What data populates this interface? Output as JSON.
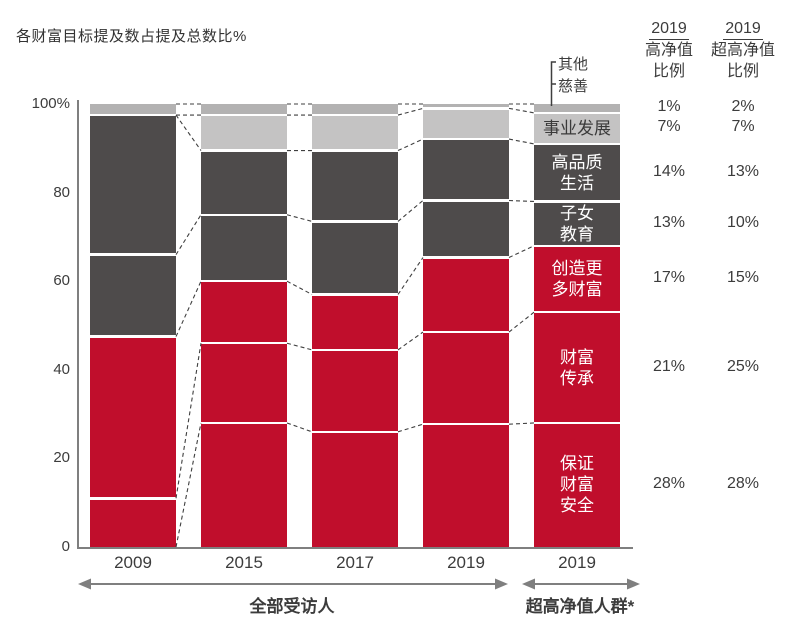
{
  "title": "各财富目标提及数占提及总数比%",
  "callout": {
    "other": "其他",
    "charity": "慈善"
  },
  "right_table": {
    "col1": {
      "year": "2019",
      "line1": "高净值",
      "line2": "比例"
    },
    "col2": {
      "year": "2019",
      "line1": "超高净值",
      "line2": "比例"
    }
  },
  "groups": [
    {
      "label": "全部受访人"
    },
    {
      "label": "超高净值人群*"
    }
  ],
  "colors": {
    "axis": "#7f7f7f",
    "text": "#3c3c3c",
    "red": "#c00e2c",
    "dark_gray": "#4e4b4b",
    "light_gray": "#c4c3c3",
    "sliver_gray": "#b3b2b2"
  },
  "chart_data": {
    "type": "bar",
    "subtype": "stacked-100-percent",
    "title": "各财富目标提及数占提及总数比%",
    "x": [
      "2009",
      "2015",
      "2017",
      "2019",
      "2019"
    ],
    "x_groups": [
      {
        "label": "全部受访人",
        "bars": [
          0,
          1,
          2,
          3
        ]
      },
      {
        "label": "超高净值人群*",
        "bars": [
          4
        ]
      }
    ],
    "y_ticks": [
      "100%",
      "80",
      "60",
      "40",
      "20",
      "0"
    ],
    "y_tick_pcts": [
      100,
      80,
      60,
      40,
      20,
      0
    ],
    "ylim": [
      0,
      100
    ],
    "legend_position": "in-bar-labels",
    "categories": [
      {
        "key": "ensure-wealth-safety",
        "name": "保证财富安全",
        "color": "#c00e2c",
        "label_color": "#ffffff",
        "label_lines": [
          "保证",
          "财富",
          "安全"
        ],
        "values": [
          0,
          28,
          26,
          28,
          28
        ],
        "hnw_2019": "28%",
        "uhnw_2019": "28%"
      },
      {
        "key": "wealth-inheritance",
        "name": "财富传承",
        "color": "#c00e2c",
        "label_color": "#ffffff",
        "label_lines": [
          "财富",
          "传承"
        ],
        "values": [
          11,
          18,
          18.5,
          21,
          25
        ],
        "hnw_2019": "21%",
        "uhnw_2019": "25%"
      },
      {
        "key": "create-more-wealth",
        "name": "创造更多财富",
        "color": "#c00e2c",
        "label_color": "#ffffff",
        "label_lines": [
          "创造更",
          "多财富"
        ],
        "values": [
          36.5,
          14,
          12.5,
          17,
          15
        ],
        "hnw_2019": "17%",
        "uhnw_2019": "15%"
      },
      {
        "key": "children-education",
        "name": "子女教育",
        "color": "#4e4b4b",
        "label_color": "#ffffff",
        "label_lines": [
          "子女",
          "教育"
        ],
        "values": [
          18.5,
          15,
          16.5,
          13,
          10
        ],
        "hnw_2019": "13%",
        "uhnw_2019": "10%"
      },
      {
        "key": "high-quality-life",
        "name": "高品质生活",
        "color": "#4e4b4b",
        "label_color": "#ffffff",
        "label_lines": [
          "高品质",
          "生活"
        ],
        "values": [
          31.5,
          14.5,
          16,
          14,
          13
        ],
        "hnw_2019": "14%",
        "uhnw_2019": "13%"
      },
      {
        "key": "career-development",
        "name": "事业发展",
        "color": "#c4c3c3",
        "label_color": "#3a3a3a",
        "label_lines": [
          "事业发展"
        ],
        "values": [
          0,
          8,
          8,
          7,
          7
        ],
        "hnw_2019": "7%",
        "uhnw_2019": "7%"
      },
      {
        "key": "other-charity",
        "name": "其他/慈善",
        "color": "#b3b2b2",
        "label_color": "#3a3a3a",
        "label_lines": [],
        "values": [
          2.5,
          2.5,
          2.5,
          1,
          2
        ],
        "hnw_2019": "1%",
        "uhnw_2019": "2%"
      }
    ]
  }
}
